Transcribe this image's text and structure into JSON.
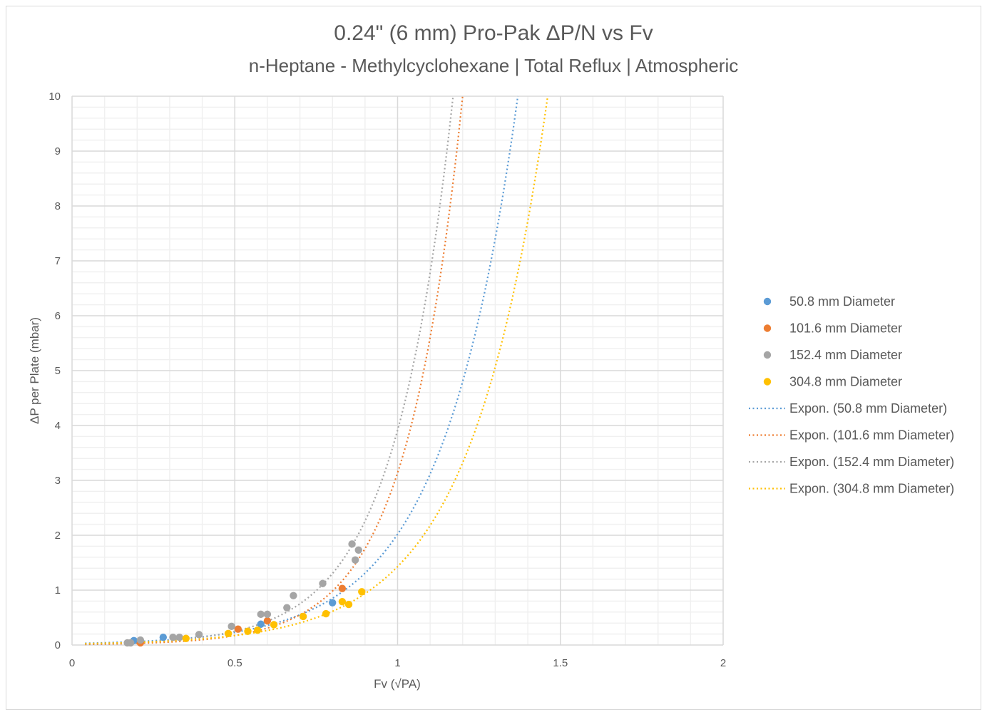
{
  "chart_data": {
    "type": "scatter",
    "title": "0.24\" (6 mm) Pro-Pak ΔP/N vs Fv",
    "subtitle": "n-Heptane - Methylcyclohexane | Total Reflux | Atmospheric",
    "xlabel": "Fv (√PA)",
    "ylabel": "ΔP per Plate (mbar)",
    "xlim": [
      0,
      2
    ],
    "ylim": [
      0,
      10
    ],
    "xticks": [
      "0",
      "0.5",
      "1",
      "1.5",
      "2"
    ],
    "yticks": [
      "0",
      "1",
      "2",
      "3",
      "4",
      "5",
      "6",
      "7",
      "8",
      "9",
      "10"
    ],
    "grid": true,
    "legend_position": "right",
    "series": [
      {
        "name": "50.8 mm Diameter",
        "color": "#5b9bd5",
        "points": [
          [
            0.19,
            0.08
          ],
          [
            0.28,
            0.14
          ],
          [
            0.58,
            0.38
          ],
          [
            0.8,
            0.77
          ]
        ],
        "trend": {
          "name": "Expon. (50.8 mm Diameter)",
          "a": 0.0266,
          "b": 4.33
        }
      },
      {
        "name": "101.6 mm Diameter",
        "color": "#ed7d31",
        "points": [
          [
            0.21,
            0.04
          ],
          [
            0.51,
            0.29
          ],
          [
            0.6,
            0.44
          ],
          [
            0.83,
            1.03
          ]
        ],
        "trend": {
          "name": "Expon. (101.6 mm Diameter)",
          "a": 0.0095,
          "b": 5.8
        }
      },
      {
        "name": "152.4 mm Diameter",
        "color": "#a5a5a5",
        "points": [
          [
            0.17,
            0.04
          ],
          [
            0.18,
            0.04
          ],
          [
            0.21,
            0.09
          ],
          [
            0.31,
            0.14
          ],
          [
            0.33,
            0.14
          ],
          [
            0.39,
            0.19
          ],
          [
            0.49,
            0.34
          ],
          [
            0.58,
            0.56
          ],
          [
            0.6,
            0.56
          ],
          [
            0.66,
            0.68
          ],
          [
            0.68,
            0.9
          ],
          [
            0.77,
            1.12
          ],
          [
            0.86,
            1.84
          ],
          [
            0.87,
            1.55
          ],
          [
            0.88,
            1.73
          ]
        ],
        "trend": {
          "name": "Expon. (152.4 mm Diameter)",
          "a": 0.016,
          "b": 5.5
        }
      },
      {
        "name": "304.8 mm Diameter",
        "color": "#ffc000",
        "points": [
          [
            0.35,
            0.12
          ],
          [
            0.48,
            0.21
          ],
          [
            0.54,
            0.25
          ],
          [
            0.57,
            0.27
          ],
          [
            0.62,
            0.37
          ],
          [
            0.71,
            0.52
          ],
          [
            0.78,
            0.57
          ],
          [
            0.83,
            0.79
          ],
          [
            0.85,
            0.74
          ],
          [
            0.89,
            0.97
          ]
        ],
        "trend": {
          "name": "Expon. (304.8 mm Diameter)",
          "a": 0.021,
          "b": 4.22
        }
      }
    ]
  }
}
